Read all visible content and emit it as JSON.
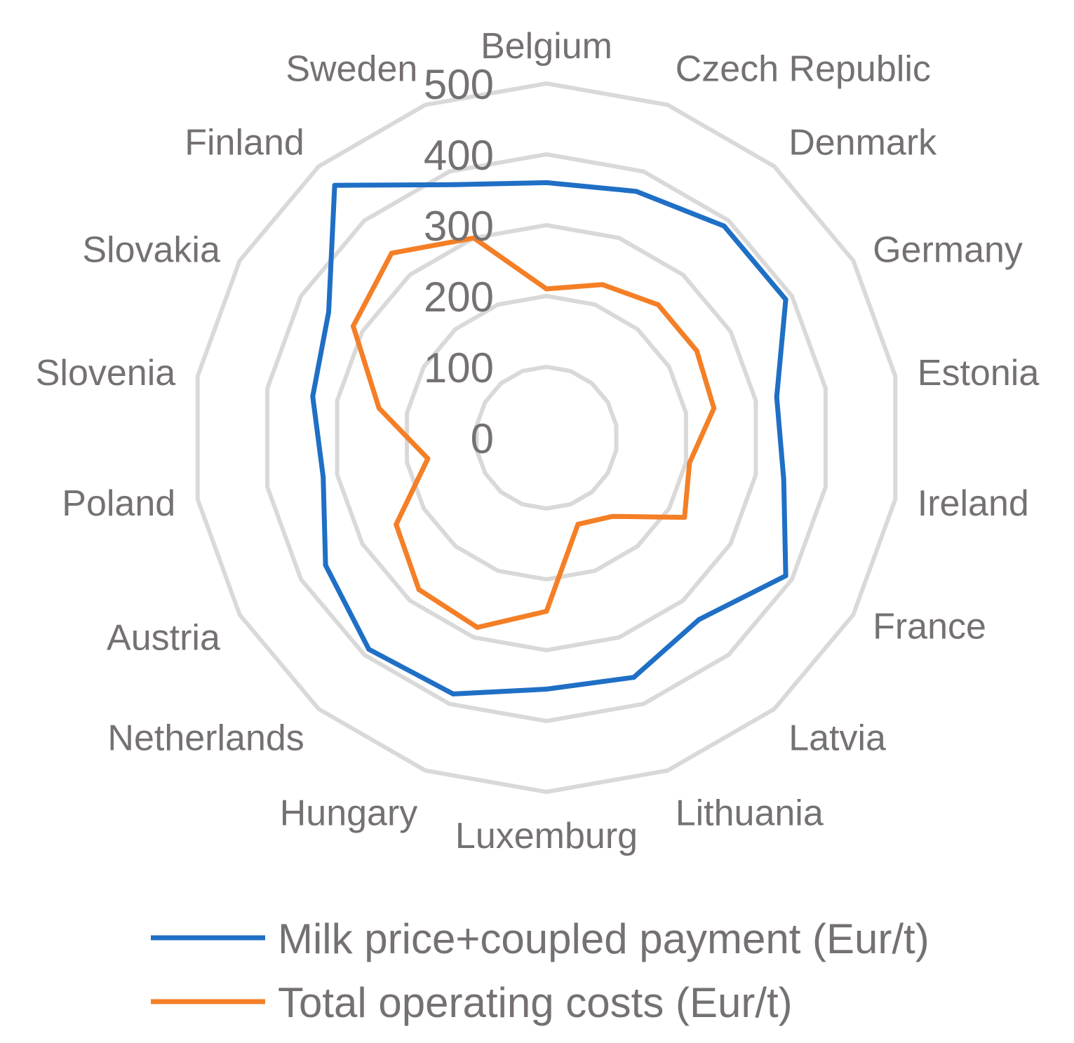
{
  "chart_data": {
    "type": "radar",
    "categories": [
      "Belgium",
      "Czech Republic",
      "Denmark",
      "Germany",
      "Estonia",
      "Ireland",
      "France",
      "Latvia",
      "Lithuania",
      "Luxemburg",
      "Hungary",
      "Netherlands",
      "Austria",
      "Poland",
      "Slovenia",
      "Slovakia",
      "Finland",
      "Sweden"
    ],
    "ticks": [
      "0",
      "100",
      "200",
      "300",
      "400",
      "500"
    ],
    "range": [
      0,
      500
    ],
    "grid": true,
    "legend_position": "bottom",
    "series": [
      {
        "name": "Milk price+coupled payment (Eur/t)",
        "color": "#1f6fc5",
        "values": [
          360,
          370,
          390,
          390,
          330,
          340,
          390,
          335,
          360,
          355,
          385,
          390,
          360,
          320,
          335,
          355,
          465,
          380
        ]
      },
      {
        "name": "Total operating costs (Eur/t)",
        "color": "#f47f26",
        "values": [
          210,
          230,
          245,
          245,
          240,
          205,
          225,
          145,
          130,
          245,
          285,
          280,
          245,
          170,
          240,
          315,
          340,
          300
        ]
      }
    ]
  }
}
